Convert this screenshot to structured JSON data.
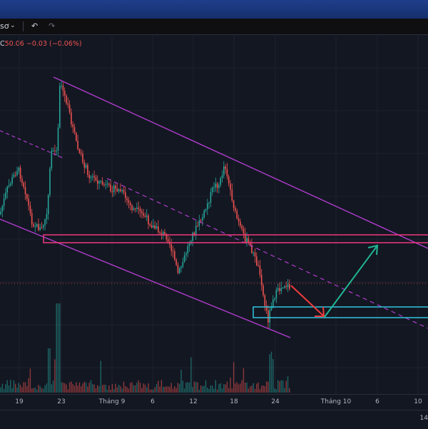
{
  "toolbar": {
    "symbol_label": "sơ",
    "dropdown_icon": "chevron-down-icon",
    "undo_icon": "undo-icon",
    "redo_icon": "redo-icon"
  },
  "legend": {
    "close_prefix": "C",
    "close_value": "50.06",
    "change": "−0.03 (−0.06%)"
  },
  "colors": {
    "background": "#131722",
    "up": "#26a69a",
    "down": "#ef5350",
    "channel": "#b03ccd",
    "resistance_box": "#f0397c",
    "support_box": "#31c5e0",
    "arrow_down": "#ef3b3b",
    "arrow_up": "#1fb594",
    "topbar": "#1f3d8a"
  },
  "time_axis": {
    "labels": [
      "19",
      "23",
      "Tháng 9",
      "6",
      "12",
      "18",
      "24",
      "Tháng 10",
      "6",
      "10"
    ]
  },
  "bottom": {
    "corner_text": "14"
  }
}
